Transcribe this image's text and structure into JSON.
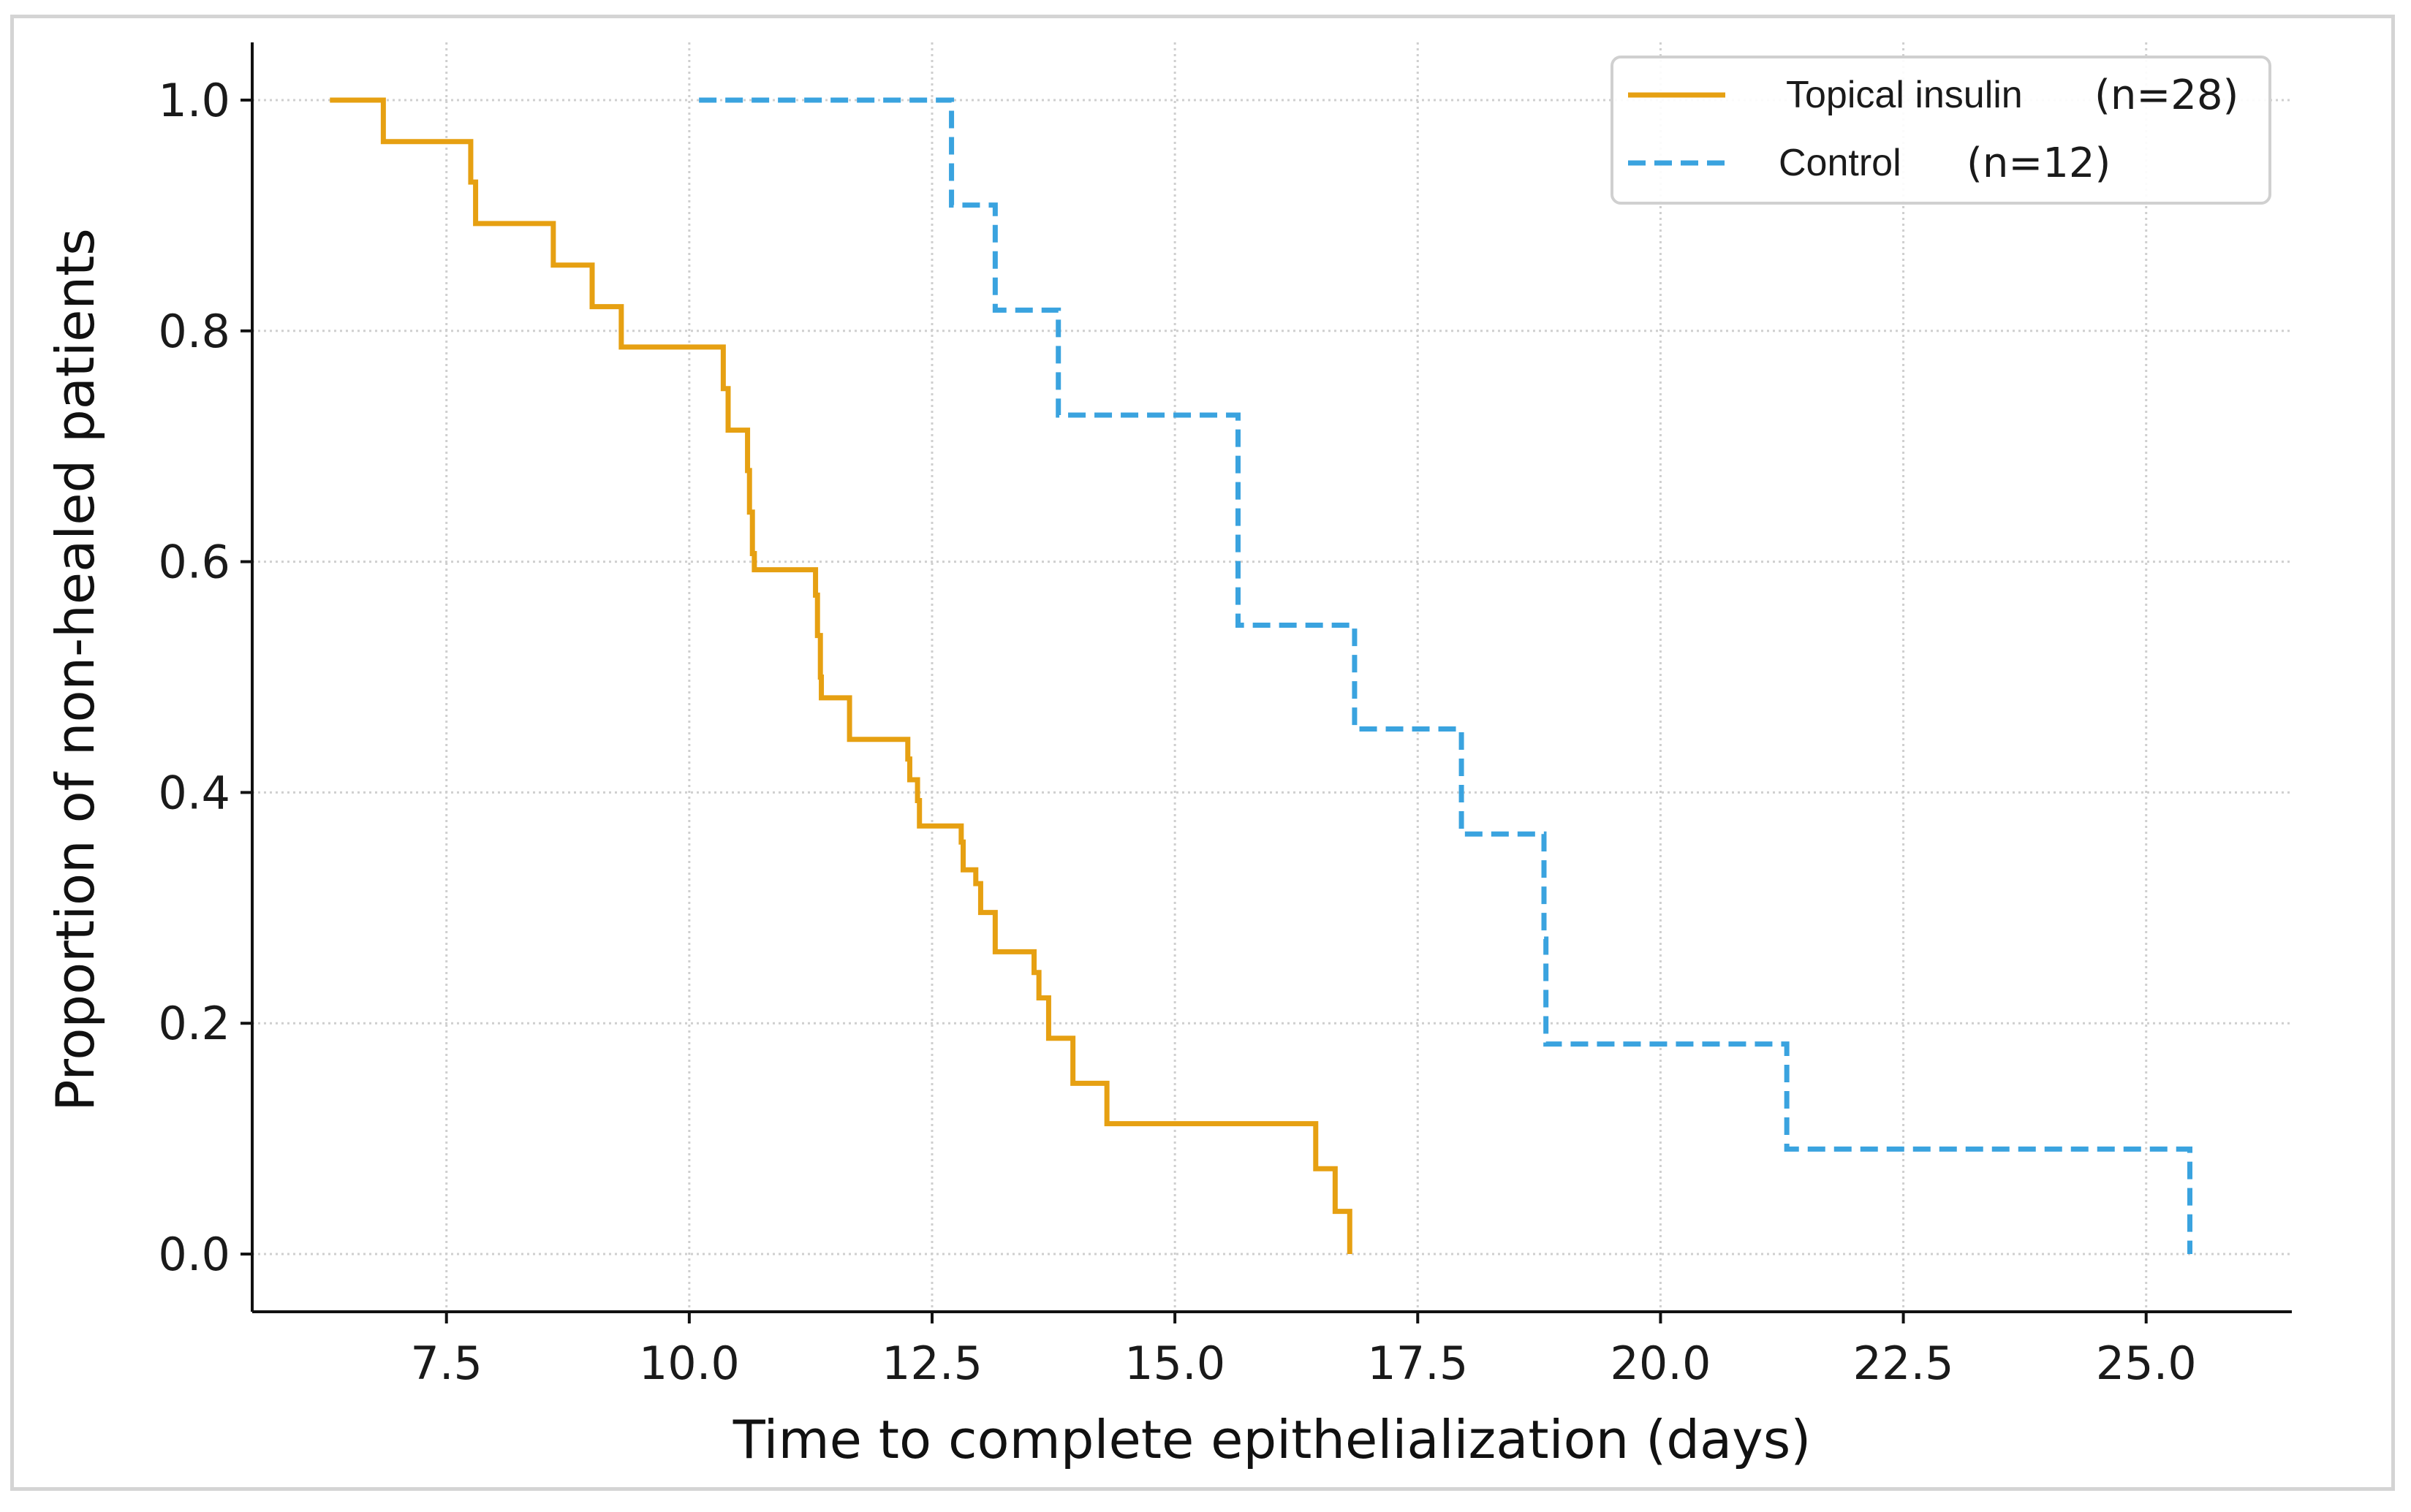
{
  "chart_data": {
    "type": "line",
    "subtype": "kaplan-meier-step",
    "title": "",
    "xlabel": "Time to complete epithelialization (days)",
    "ylabel": "Proportion of non-healed patients",
    "xlim": [
      5.5,
      26.5
    ],
    "ylim": [
      -0.05,
      1.05
    ],
    "xticks": [
      7.5,
      10.0,
      12.5,
      15.0,
      17.5,
      20.0,
      22.5,
      25.0
    ],
    "xtick_labels": [
      "7.5",
      "10.0",
      "12.5",
      "15.0",
      "17.5",
      "20.0",
      "22.5",
      "25.0"
    ],
    "yticks": [
      0.0,
      0.2,
      0.4,
      0.6,
      0.8,
      1.0
    ],
    "ytick_labels": [
      "0.0",
      "0.2",
      "0.4",
      "0.6",
      "0.8",
      "1.0"
    ],
    "grid": true,
    "legend_position": "top-right",
    "series": [
      {
        "name": "Topical insulin",
        "n_label": "(n=28)",
        "color": "#e6a012",
        "style": "solid",
        "steps": [
          [
            6.3,
            1.0
          ],
          [
            6.85,
            0.964
          ],
          [
            7.75,
            0.929
          ],
          [
            7.8,
            0.893
          ],
          [
            8.6,
            0.857
          ],
          [
            9.0,
            0.821
          ],
          [
            9.3,
            0.786
          ],
          [
            10.35,
            0.75
          ],
          [
            10.4,
            0.714
          ],
          [
            10.6,
            0.679
          ],
          [
            10.62,
            0.643
          ],
          [
            10.65,
            0.607
          ],
          [
            10.67,
            0.593
          ],
          [
            11.3,
            0.571
          ],
          [
            11.32,
            0.536
          ],
          [
            11.35,
            0.5
          ],
          [
            11.36,
            0.482
          ],
          [
            11.65,
            0.446
          ],
          [
            12.25,
            0.429
          ],
          [
            12.27,
            0.411
          ],
          [
            12.35,
            0.393
          ],
          [
            12.37,
            0.371
          ],
          [
            12.8,
            0.357
          ],
          [
            12.82,
            0.333
          ],
          [
            12.95,
            0.321
          ],
          [
            13.0,
            0.296
          ],
          [
            13.15,
            0.262
          ],
          [
            13.55,
            0.244
          ],
          [
            13.6,
            0.222
          ],
          [
            13.7,
            0.187
          ],
          [
            13.95,
            0.148
          ],
          [
            14.3,
            0.113
          ],
          [
            16.45,
            0.074
          ],
          [
            16.65,
            0.037
          ],
          [
            16.8,
            0.0
          ]
        ]
      },
      {
        "name": "Control",
        "n_label": "(n=12)",
        "color": "#3aa3df",
        "style": "dashed",
        "steps": [
          [
            10.1,
            1.0
          ],
          [
            12.7,
            0.909
          ],
          [
            13.15,
            0.818
          ],
          [
            13.8,
            0.727
          ],
          [
            15.65,
            0.545
          ],
          [
            16.85,
            0.455
          ],
          [
            17.95,
            0.364
          ],
          [
            18.8,
            0.273
          ],
          [
            18.82,
            0.182
          ],
          [
            21.3,
            0.091
          ],
          [
            25.45,
            0.0
          ]
        ]
      }
    ]
  }
}
